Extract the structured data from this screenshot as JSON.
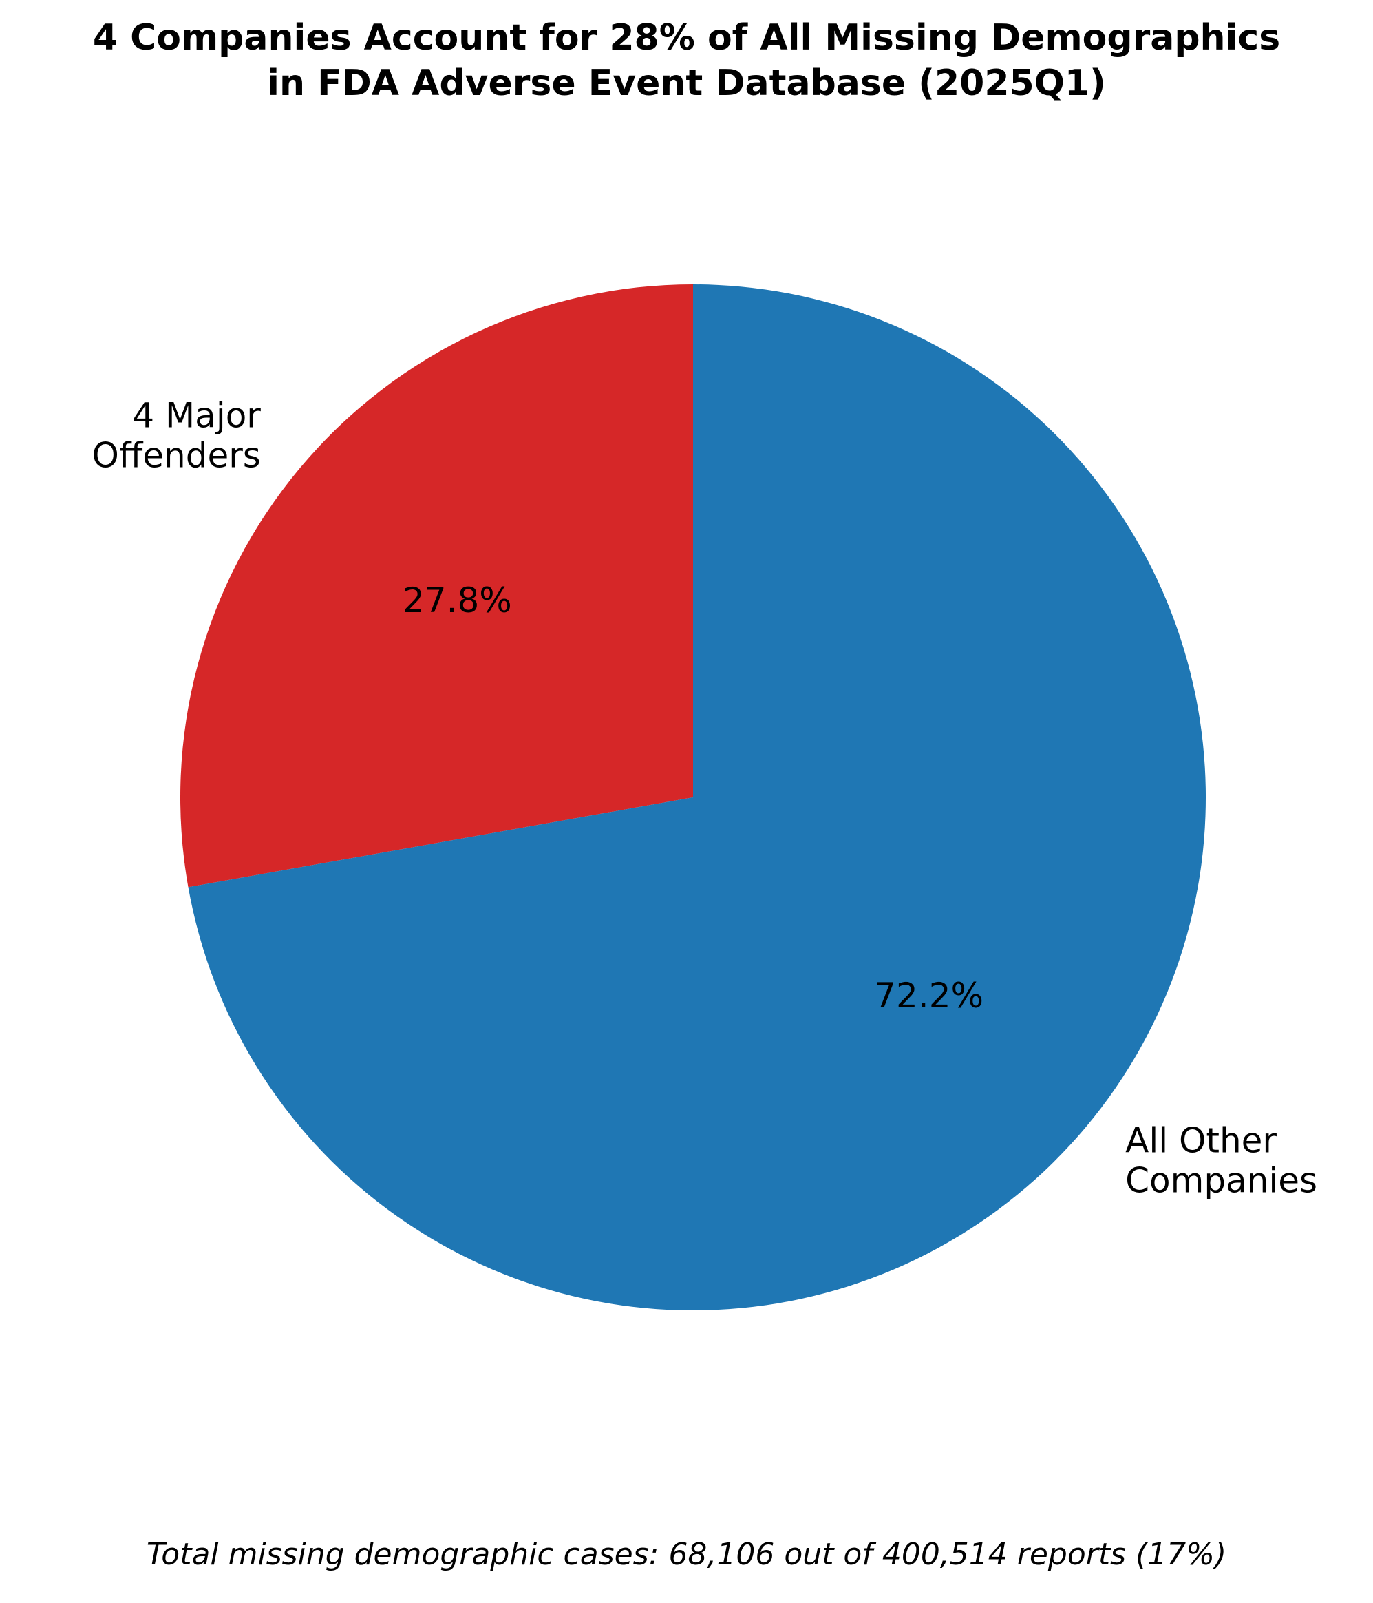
{
  "chart_data": {
    "type": "pie",
    "title_lines": [
      "4 Companies Account for 28% of All Missing Demographics",
      "in FDA Adverse Event Database (2025Q1)"
    ],
    "slices": [
      {
        "label_lines": [
          "4 Major",
          "Offenders"
        ],
        "value": 27.8,
        "pct_label": "27.8%",
        "color": "#d62728"
      },
      {
        "label_lines": [
          "All Other",
          "Companies"
        ],
        "value": 72.2,
        "pct_label": "72.2%",
        "color": "#1f77b4"
      }
    ],
    "start_angle": "12 o'clock",
    "direction": "counter-clockwise",
    "footnote": "Total missing demographic cases: 68,106 out of 400,514 reports (17%)"
  }
}
